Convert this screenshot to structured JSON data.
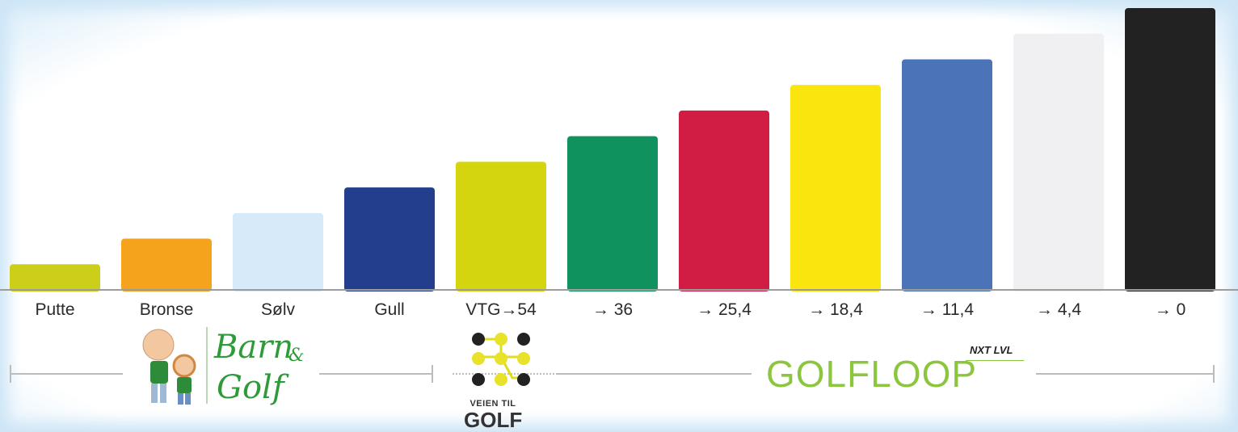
{
  "chart_data": {
    "type": "bar",
    "categories": [
      "Putte",
      "Bronse",
      "Sølv",
      "Gull",
      "VTG→54",
      "→ 36",
      "→ 25,4",
      "→ 18,4",
      "→ 11,4",
      "→ 4,4",
      "→ 0"
    ],
    "values": [
      1,
      2,
      3,
      4,
      5,
      6,
      7,
      8,
      9,
      10,
      11
    ],
    "colors": [
      "#cbcf1a",
      "#f5a21d",
      "#d6eafa",
      "#243e8e",
      "#d4d40f",
      "#10925e",
      "#d11c44",
      "#fae50e",
      "#4a73b8",
      "#f0f0f2",
      "#222222"
    ],
    "ylim": [
      0,
      11
    ],
    "title": "",
    "xlabel": "",
    "ylabel": "",
    "grid": false
  },
  "logos": {
    "barn_golf_line1": "Barn",
    "barn_golf_amp": "&",
    "barn_golf_line2": "Golf",
    "veien_til": "VEIEN TIL",
    "veien_golf": "GOLF",
    "golfloop": "GOLFLOOP",
    "nxt_lvl": "NXT LVL"
  }
}
